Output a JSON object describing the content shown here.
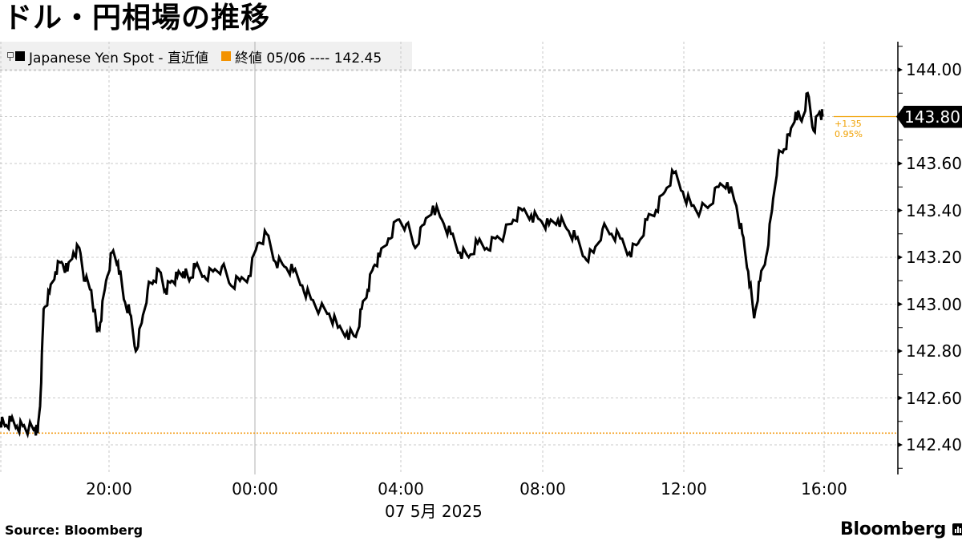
{
  "title": "ドル・円相場の推移",
  "legend": {
    "series_label": "Japanese Yen Spot - 直近値",
    "series_color": "#000000",
    "ref_label": "終値 05/06 ---- 142.45",
    "ref_color": "#f39200"
  },
  "last_value": {
    "label": "143.80",
    "change_abs": "+1.35",
    "change_pct": "0.95%"
  },
  "source": "Source:  Bloomberg",
  "brand": "Bloomberg",
  "date_label": "07 5月  2025",
  "chart_data": {
    "type": "line",
    "title": "ドル・円相場の推移",
    "series": [
      {
        "name": "Japanese Yen Spot - 直近値",
        "color": "#000000",
        "x_time": [
          "16:57",
          "17:05",
          "17:15",
          "17:25",
          "17:35",
          "17:45",
          "17:55",
          "18:00",
          "18:05",
          "18:10",
          "18:20",
          "18:30",
          "18:40",
          "18:50",
          "19:00",
          "19:10",
          "19:20",
          "19:30",
          "19:40",
          "19:45",
          "19:55",
          "20:05",
          "20:15",
          "20:25",
          "20:35",
          "20:45",
          "20:55",
          "21:05",
          "21:15",
          "21:25",
          "21:35",
          "21:45",
          "21:55",
          "22:05",
          "22:15",
          "22:25",
          "22:40",
          "22:55",
          "23:10",
          "23:25",
          "23:40",
          "23:55",
          "00:10",
          "00:25",
          "00:40",
          "00:55",
          "01:10",
          "01:25",
          "01:40",
          "01:55",
          "02:10",
          "02:25",
          "02:40",
          "02:55",
          "03:05",
          "03:15",
          "03:25",
          "03:35",
          "03:50",
          "04:05",
          "04:20",
          "04:35",
          "04:50",
          "05:05",
          "05:20",
          "05:35",
          "05:50",
          "06:05",
          "06:20",
          "06:35",
          "06:50",
          "07:05",
          "07:20",
          "07:35",
          "07:50",
          "08:05",
          "08:20",
          "08:35",
          "08:50",
          "09:05",
          "09:20",
          "09:35",
          "09:50",
          "10:05",
          "10:20",
          "10:35",
          "10:50",
          "11:05",
          "11:20",
          "11:35",
          "11:50",
          "12:05",
          "12:20",
          "12:35",
          "12:50",
          "13:05",
          "13:20",
          "13:35",
          "13:45",
          "13:55",
          "14:05",
          "14:15",
          "14:25",
          "14:35",
          "14:45",
          "14:55",
          "15:05",
          "15:15",
          "15:25",
          "15:35",
          "15:45",
          "15:55",
          "16:00"
        ],
        "values": [
          142.5,
          142.48,
          142.5,
          142.48,
          142.48,
          142.47,
          142.47,
          142.45,
          142.62,
          142.98,
          143.05,
          143.14,
          143.18,
          143.14,
          143.22,
          143.24,
          143.1,
          143.06,
          142.88,
          142.92,
          143.1,
          143.22,
          143.18,
          143.02,
          142.96,
          142.8,
          142.92,
          143.06,
          143.1,
          143.14,
          143.06,
          143.1,
          143.12,
          143.14,
          143.1,
          143.16,
          143.12,
          143.14,
          143.16,
          143.08,
          143.1,
          143.12,
          143.26,
          143.3,
          143.18,
          143.16,
          143.14,
          143.08,
          143.02,
          142.98,
          142.96,
          142.9,
          142.88,
          142.86,
          142.98,
          143.06,
          143.16,
          143.2,
          143.28,
          143.36,
          143.34,
          143.24,
          143.34,
          143.42,
          143.36,
          143.3,
          143.22,
          143.2,
          143.26,
          143.24,
          143.28,
          143.3,
          143.36,
          143.4,
          143.38,
          143.36,
          143.34,
          143.36,
          143.32,
          143.28,
          143.2,
          143.22,
          143.32,
          143.3,
          143.28,
          143.22,
          143.26,
          143.36,
          143.4,
          143.48,
          143.56,
          143.48,
          143.42,
          143.4,
          143.42,
          143.5,
          143.52,
          143.42,
          143.3,
          143.14,
          142.94,
          143.1,
          143.2,
          143.4,
          143.62,
          143.66,
          143.72,
          143.82,
          143.78,
          143.9,
          143.74,
          143.82,
          143.8
        ]
      },
      {
        "name": "終値 05/06",
        "color": "#f39200",
        "style": "dotted",
        "value": 142.45
      }
    ],
    "xlabel": "07 5月  2025",
    "ylabel": "",
    "x_ticks": [
      "20:00",
      "00:00",
      "04:00",
      "08:00",
      "12:00",
      "16:00"
    ],
    "y_ticks": [
      "142.40",
      "142.60",
      "142.80",
      "143.00",
      "143.20",
      "143.40",
      "143.60",
      "143.80",
      "144.00"
    ],
    "ylim": [
      142.35,
      144.12
    ],
    "last_value": 143.8,
    "change": "+1.35",
    "change_pct": "0.95%",
    "grid": true,
    "legend_position": "top-left",
    "source": "Bloomberg"
  }
}
